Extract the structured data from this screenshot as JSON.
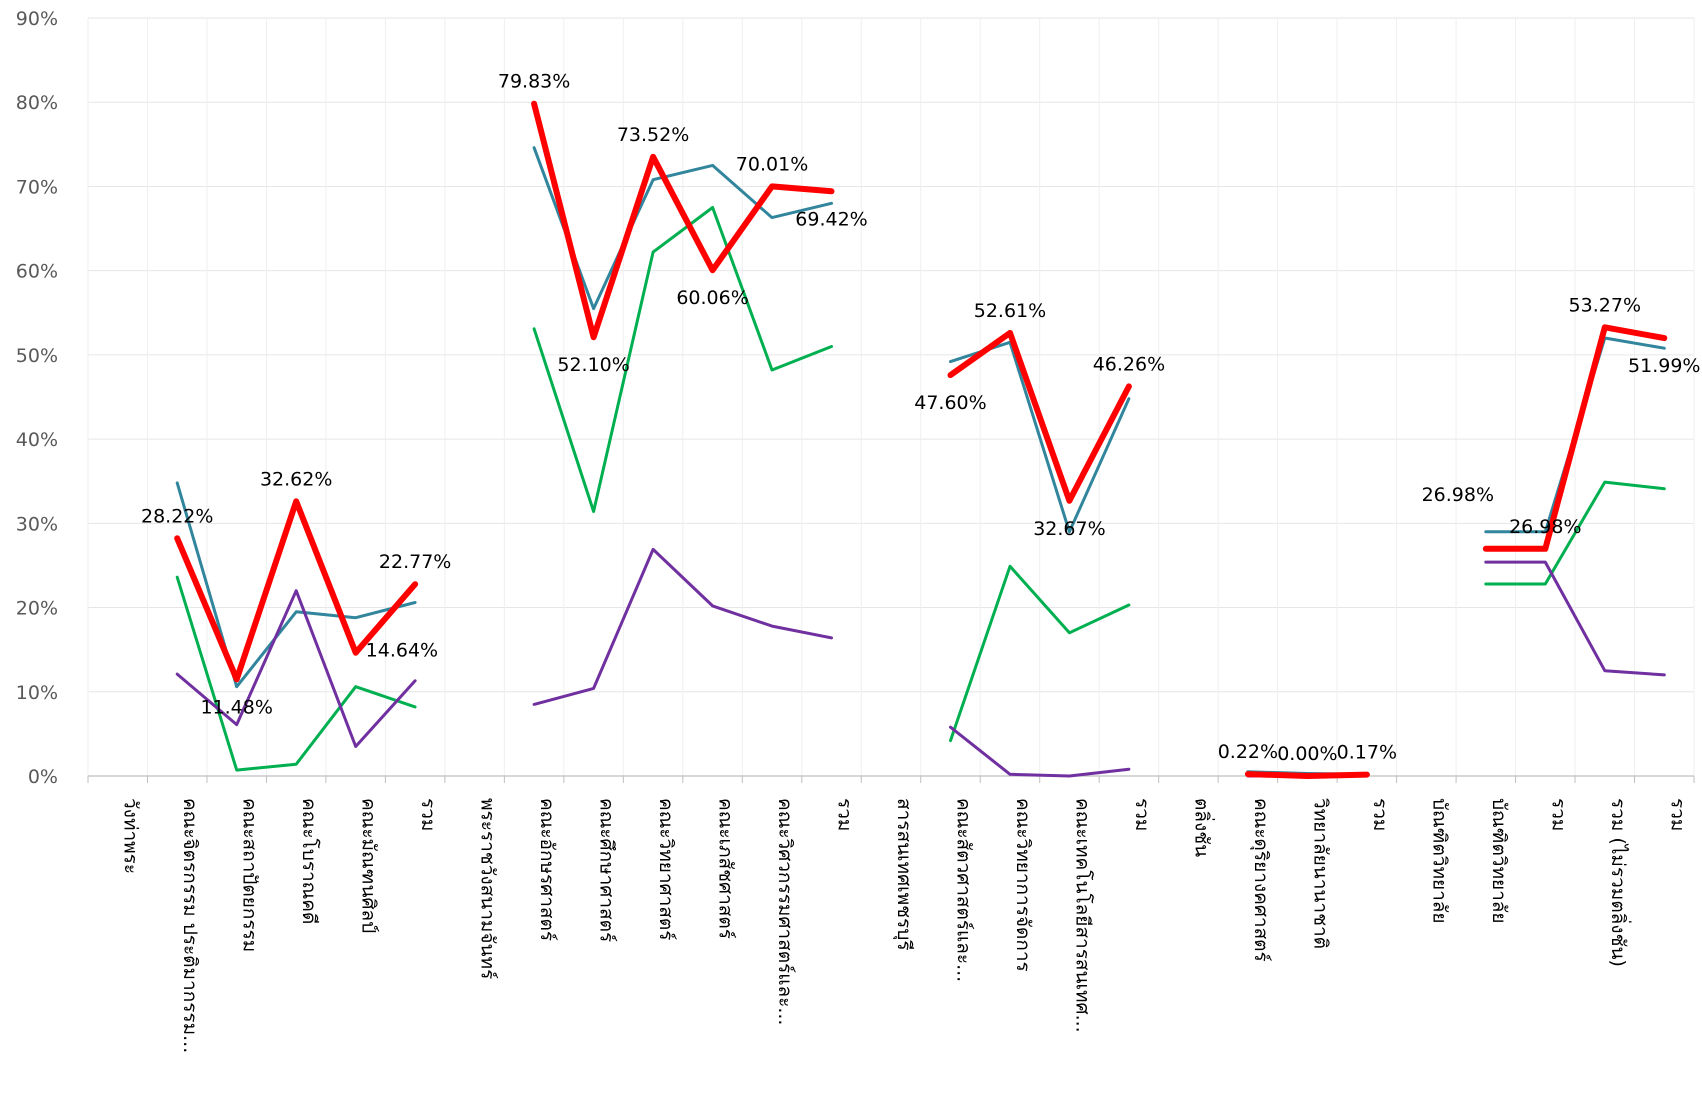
{
  "chart_data": {
    "type": "line",
    "title": "",
    "xlabel": "",
    "ylabel": "",
    "ylim": [
      0,
      90
    ],
    "yticks": [
      "0%",
      "10%",
      "20%",
      "30%",
      "40%",
      "50%",
      "60%",
      "70%",
      "80%",
      "90%"
    ],
    "grid": true,
    "legend": "none",
    "categories": [
      "วังท่าพระ",
      "คณะจิตรกรรม ประติมากรรม...",
      "คณะสถาปัตยกรรม",
      "คณะโบราณคดี",
      "คณะมัณฑนศิลป์",
      "รวม",
      "พระราชวังสนามจันทร์",
      "คณะอักษรศาสตร์",
      "คณะศึกษาศาสตร์",
      "คณะวิทยาศาสตร์",
      "คณะเภสัชศาสตร์",
      "คณะวิศวกรรมศาสตร์และ...",
      "รวม",
      "สารสนเทศเพชรบุรี",
      "คณะสัตวศาสตร์และ...",
      "คณะวิทยาการจัดการ",
      "คณะเทคโนโลยีสารสนเทศ...",
      "รวม",
      "ตลิ่งชัน",
      "คณะดุริยางคศาสตร์",
      "วิทยาลัยนานาชาติ",
      "รวม",
      "บัณฑิตวิทยาลัย",
      "บัณฑิตวิทยาลัย",
      "รวม",
      "รวม (ไม่รวมตลิ่งชัน)",
      "รวม"
    ],
    "series": [
      {
        "color": "#31859c",
        "width": 3,
        "values": [
          null,
          34.8,
          10.6,
          19.5,
          18.8,
          20.6,
          null,
          74.6,
          55.5,
          70.8,
          72.5,
          66.3,
          68.0,
          null,
          49.2,
          51.5,
          29.0,
          44.8,
          null,
          0.5,
          0.3,
          0.2,
          null,
          29.0,
          29.0,
          52.0,
          50.8
        ]
      },
      {
        "color": "#00b050",
        "width": 3,
        "values": [
          null,
          23.6,
          0.7,
          1.4,
          10.6,
          8.2,
          null,
          53.1,
          31.4,
          62.2,
          67.5,
          48.2,
          51.0,
          null,
          4.2,
          24.9,
          17.0,
          20.3,
          null,
          0.2,
          0.0,
          0.1,
          null,
          22.8,
          22.8,
          34.9,
          34.1
        ]
      },
      {
        "color": "#7030a0",
        "width": 3,
        "values": [
          null,
          12.1,
          6.1,
          22.0,
          3.5,
          11.3,
          null,
          8.5,
          10.4,
          26.9,
          20.2,
          17.8,
          16.4,
          null,
          5.8,
          0.2,
          0.0,
          0.8,
          null,
          0.0,
          0.0,
          0.0,
          null,
          25.4,
          25.4,
          12.5,
          12.0
        ]
      },
      {
        "color": "#ff0000",
        "width": 6,
        "values": [
          null,
          28.22,
          11.48,
          32.62,
          14.64,
          22.77,
          null,
          79.83,
          52.1,
          73.52,
          60.06,
          70.01,
          69.42,
          null,
          47.6,
          52.61,
          32.67,
          46.26,
          null,
          0.22,
          0.0,
          0.17,
          null,
          26.98,
          26.98,
          53.27,
          51.99
        ]
      }
    ],
    "data_labels": [
      {
        "index": 1,
        "text": "28.22%",
        "pos": "above"
      },
      {
        "index": 2,
        "text": "11.48%",
        "pos": "below"
      },
      {
        "index": 3,
        "text": "32.62%",
        "pos": "above"
      },
      {
        "index": 4,
        "text": "14.64%",
        "pos": "right"
      },
      {
        "index": 5,
        "text": "22.77%",
        "pos": "above"
      },
      {
        "index": 7,
        "text": "79.83%",
        "pos": "above"
      },
      {
        "index": 8,
        "text": "52.10%",
        "pos": "below"
      },
      {
        "index": 9,
        "text": "73.52%",
        "pos": "above"
      },
      {
        "index": 10,
        "text": "60.06%",
        "pos": "below"
      },
      {
        "index": 11,
        "text": "70.01%",
        "pos": "above"
      },
      {
        "index": 12,
        "text": "69.42%",
        "pos": "below"
      },
      {
        "index": 14,
        "text": "47.60%",
        "pos": "below"
      },
      {
        "index": 15,
        "text": "52.61%",
        "pos": "above"
      },
      {
        "index": 16,
        "text": "32.67%",
        "pos": "below"
      },
      {
        "index": 17,
        "text": "46.26%",
        "pos": "above"
      },
      {
        "index": 19,
        "text": "0.22%",
        "pos": "above"
      },
      {
        "index": 20,
        "text": "0.00%",
        "pos": "above"
      },
      {
        "index": 21,
        "text": "0.17%",
        "pos": "above"
      },
      {
        "index": 23,
        "text": "26.98%",
        "pos": "above-left"
      },
      {
        "index": 24,
        "text": "26.98%",
        "pos": "above"
      },
      {
        "index": 25,
        "text": "53.27%",
        "pos": "above"
      },
      {
        "index": 26,
        "text": "51.99%",
        "pos": "below"
      }
    ]
  }
}
